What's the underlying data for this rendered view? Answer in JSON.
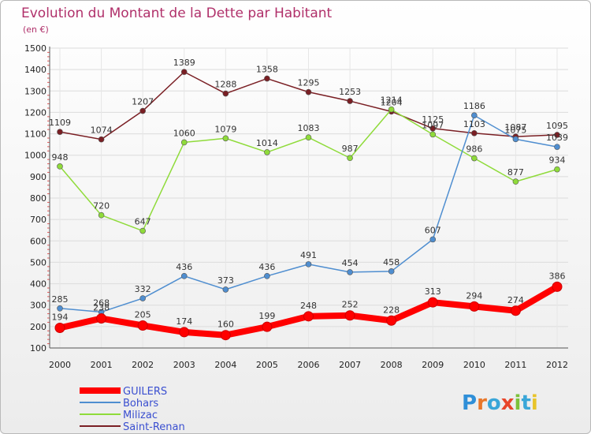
{
  "chart_data": {
    "type": "line",
    "title": "Evolution du Montant de la Dette par Habitant",
    "subtitle": "(en €)",
    "categories": [
      "2000",
      "2001",
      "2002",
      "2003",
      "2004",
      "2005",
      "2006",
      "2007",
      "2008",
      "2009",
      "2010",
      "2011",
      "2012"
    ],
    "ylim": [
      100,
      1500
    ],
    "yticks": [
      100,
      200,
      300,
      400,
      500,
      600,
      700,
      800,
      900,
      1000,
      1100,
      1200,
      1300,
      1400,
      1500
    ],
    "grid": true,
    "legend_position": "bottom-left",
    "series": [
      {
        "name": "GUILERS",
        "color": "#ff0000",
        "values": [
          194,
          238,
          205,
          174,
          160,
          199,
          248,
          252,
          228,
          313,
          294,
          274,
          386
        ]
      },
      {
        "name": "Bohars",
        "color": "#4f8ed0",
        "values": [
          285,
          268,
          332,
          436,
          373,
          436,
          491,
          454,
          458,
          607,
          1186,
          1075,
          1039
        ]
      },
      {
        "name": "Milizac",
        "color": "#8fdb3a",
        "values": [
          948,
          720,
          647,
          1060,
          1079,
          1014,
          1083,
          987,
          1214,
          1097,
          986,
          877,
          934
        ]
      },
      {
        "name": "Saint-Renan",
        "color": "#7a1f24",
        "values": [
          1109,
          1074,
          1207,
          1389,
          1288,
          1358,
          1295,
          1253,
          1204,
          1125,
          1103,
          1087,
          1095
        ]
      }
    ]
  },
  "logo": {
    "letters": [
      "P",
      "r",
      "o",
      "x",
      "i",
      "t",
      "i"
    ],
    "colors": [
      "#2f8fd8",
      "#e8772a",
      "#3aa6d8",
      "#e8452a",
      "#7cc23a",
      "#3aa6d8",
      "#e8c42a"
    ]
  }
}
